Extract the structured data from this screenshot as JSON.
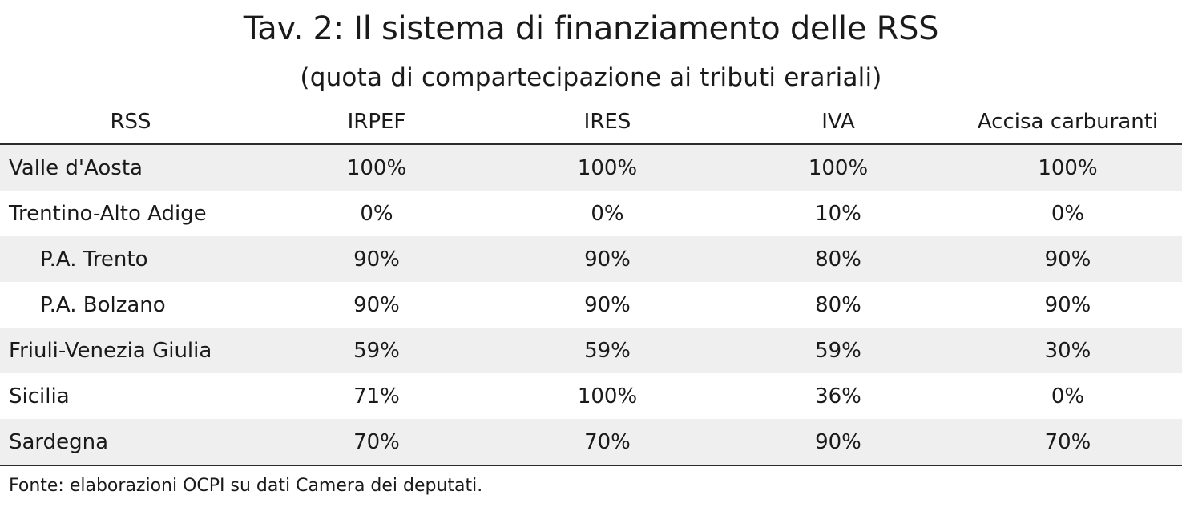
{
  "title": "Tav. 2: Il sistema di finanziamento delle RSS",
  "subtitle": "(quota di compartecipazione ai tributi erariali)",
  "table": {
    "headers": [
      "RSS",
      "IRPEF",
      "IRES",
      "IVA",
      "Accisa carburanti"
    ],
    "rows": [
      {
        "name": "Valle d'Aosta",
        "values": [
          "100%",
          "100%",
          "100%",
          "100%"
        ]
      },
      {
        "name": "Trentino-Alto Adige",
        "values": [
          "0%",
          "0%",
          "10%",
          "0%"
        ]
      },
      {
        "name": "P.A. Trento",
        "values": [
          "90%",
          "90%",
          "80%",
          "90%"
        ]
      },
      {
        "name": "P.A. Bolzano",
        "values": [
          "90%",
          "90%",
          "80%",
          "90%"
        ]
      },
      {
        "name": "Friuli-Venezia Giulia",
        "values": [
          "59%",
          "59%",
          "59%",
          "30%"
        ]
      },
      {
        "name": "Sicilia",
        "values": [
          "71%",
          "100%",
          "36%",
          "0%"
        ]
      },
      {
        "name": "Sardegna",
        "values": [
          "70%",
          "70%",
          "90%",
          "70%"
        ]
      }
    ]
  },
  "source": "Fonte: elaborazioni OCPI su dati Camera dei deputati.",
  "colors": {
    "row_shade": "#efefef",
    "rule": "#2b2b2b"
  }
}
